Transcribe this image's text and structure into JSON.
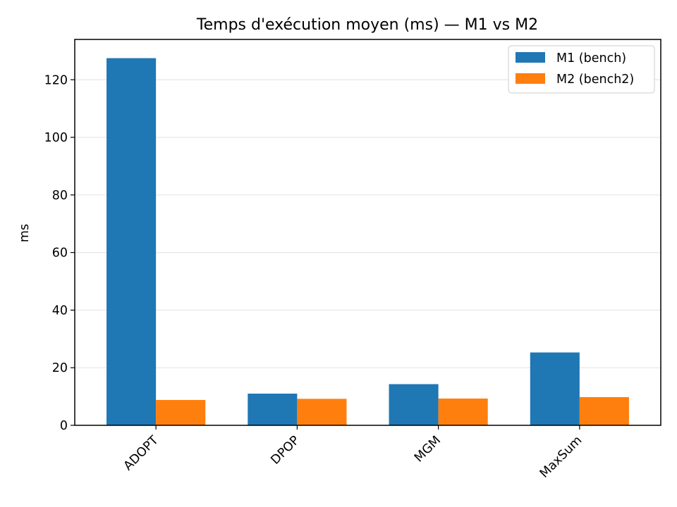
{
  "chart_data": {
    "type": "bar",
    "title": "Temps d'exécution moyen (ms) — M1 vs M2",
    "xlabel": "",
    "ylabel": "ms",
    "categories": [
      "ADOPT",
      "DPOP",
      "MGM",
      "MaxSum"
    ],
    "series": [
      {
        "name": "M1 (bench)",
        "color": "#1f77b4",
        "values": [
          127.5,
          11.0,
          14.3,
          25.3
        ]
      },
      {
        "name": "M2 (bench2)",
        "color": "#ff7f0e",
        "values": [
          8.8,
          9.2,
          9.3,
          9.8
        ]
      }
    ],
    "ylim": [
      0,
      134
    ],
    "yticks": [
      0,
      20,
      40,
      60,
      80,
      100,
      120
    ],
    "grid": "y",
    "legend_position": "top-right"
  }
}
